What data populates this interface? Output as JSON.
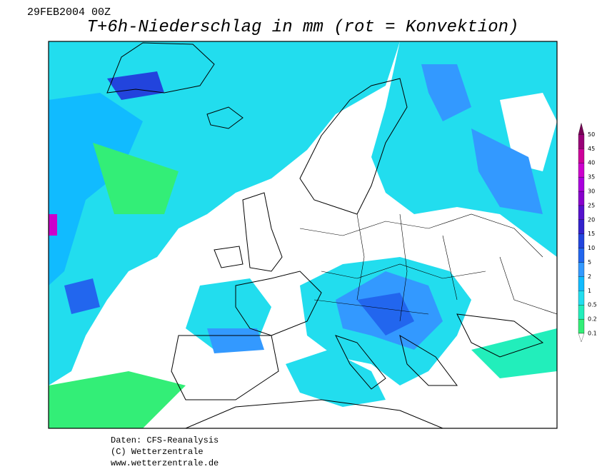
{
  "header": {
    "date": "29FEB2004 00Z",
    "title": "T+6h-Niederschlag in mm (rot = Konvektion)"
  },
  "legend": {
    "levels": [
      0.1,
      0.2,
      0.5,
      1,
      2,
      5,
      10,
      15,
      20,
      25,
      30,
      35,
      40,
      45,
      50
    ],
    "colors": [
      "#33ee77",
      "#22eebb",
      "#22ddee",
      "#11bbff",
      "#3399ff",
      "#2266ee",
      "#2244dd",
      "#3322cc",
      "#5511cc",
      "#8800cc",
      "#aa00dd",
      "#cc00cc",
      "#cc0099",
      "#990077",
      "#770055"
    ]
  },
  "footer": {
    "lines": [
      "Daten: CFS-Reanalysis",
      "(C) Wetterzentrale",
      "www.wetterzentrale.de"
    ]
  }
}
